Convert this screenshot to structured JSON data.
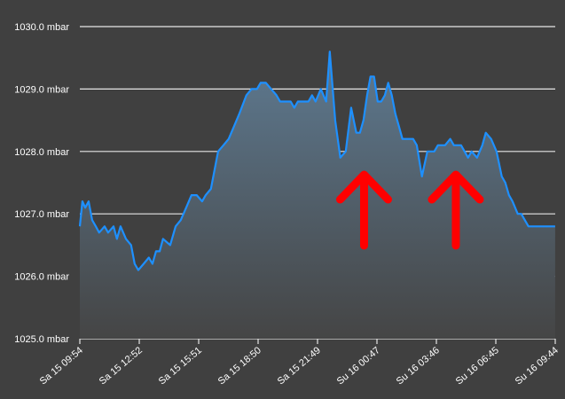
{
  "chart_data": {
    "type": "area",
    "title": "",
    "xlabel": "",
    "ylabel": "",
    "unit": "mbar",
    "ylim": [
      1025.0,
      1030.0
    ],
    "yticks": [
      "1025.0 mbar",
      "1026.0 mbar",
      "1027.0 mbar",
      "1028.0 mbar",
      "1029.0 mbar",
      "1030.0 mbar"
    ],
    "ytick_values": [
      1025,
      1026,
      1027,
      1028,
      1029,
      1030
    ],
    "xticks": [
      "Sa 15 09:54",
      "Sa 15 12:52",
      "Sa 15 15:51",
      "Sa 15 18:50",
      "Sa 15 21:49",
      "Su 16 00:47",
      "Su 16 03:46",
      "Su 16 06:45",
      "Su 16 09:44"
    ],
    "xlim_hours": [
      0,
      23.833
    ],
    "grid": true,
    "line_color": "#1e90ff",
    "fill_top_color": "#5e7a91",
    "fill_bottom_color": "#454545",
    "series": [
      {
        "x_hours": [
          0,
          0.13,
          0.27,
          0.44,
          0.62,
          0.8,
          0.97,
          1.24,
          1.42,
          1.69,
          1.86,
          2.04,
          2.31,
          2.57,
          2.75,
          2.93,
          3.2,
          3.46,
          3.64,
          3.82,
          4.0,
          4.17,
          4.53,
          4.8,
          5.06,
          5.33,
          5.6,
          5.86,
          6.13,
          6.31,
          6.57,
          6.93,
          7.2,
          7.46,
          7.73,
          7.99,
          8.35,
          8.61,
          8.88,
          9.06,
          9.33,
          9.59,
          9.86,
          10.04,
          10.31,
          10.57,
          10.75,
          10.93,
          11.19,
          11.46,
          11.64,
          11.82,
          12.08,
          12.35,
          12.53,
          12.8,
          13.06,
          13.33,
          13.6,
          13.86,
          14.04,
          14.22,
          14.4,
          14.57,
          14.75,
          14.93,
          15.11,
          15.29,
          15.46,
          15.64,
          15.82,
          16.0,
          16.17,
          16.35,
          16.53,
          16.71,
          16.89,
          17.15,
          17.42,
          17.6,
          17.77,
          17.95,
          18.13,
          18.31,
          18.57,
          18.75,
          18.93,
          19.11,
          19.29,
          19.46,
          19.64,
          19.91,
          20.18,
          20.35,
          20.62,
          20.89,
          21.15,
          21.33,
          21.51,
          21.69,
          21.95,
          22.13,
          22.31,
          22.49,
          22.66,
          22.84,
          23.02,
          23.2,
          23.37,
          23.55,
          23.83
        ],
        "values": [
          1026.8,
          1027.2,
          1027.1,
          1027.2,
          1026.9,
          1026.8,
          1026.7,
          1026.8,
          1026.7,
          1026.8,
          1026.6,
          1026.8,
          1026.6,
          1026.5,
          1026.2,
          1026.1,
          1026.2,
          1026.3,
          1026.2,
          1026.4,
          1026.4,
          1026.6,
          1026.5,
          1026.8,
          1026.9,
          1027.1,
          1027.3,
          1027.3,
          1027.2,
          1027.3,
          1027.4,
          1028.0,
          1028.1,
          1028.2,
          1028.4,
          1028.6,
          1028.9,
          1029.0,
          1029.0,
          1029.1,
          1029.1,
          1029.0,
          1028.9,
          1028.8,
          1028.8,
          1028.8,
          1028.7,
          1028.8,
          1028.8,
          1028.8,
          1028.9,
          1028.8,
          1029.0,
          1028.8,
          1029.6,
          1028.5,
          1027.9,
          1028.0,
          1028.7,
          1028.3,
          1028.3,
          1028.5,
          1028.9,
          1029.2,
          1029.2,
          1028.8,
          1028.8,
          1028.9,
          1029.1,
          1028.9,
          1028.6,
          1028.4,
          1028.2,
          1028.2,
          1028.2,
          1028.2,
          1028.1,
          1027.6,
          1028.0,
          1028.0,
          1028.0,
          1028.1,
          1028.1,
          1028.1,
          1028.2,
          1028.1,
          1028.1,
          1028.1,
          1028.0,
          1027.9,
          1028.0,
          1027.9,
          1028.1,
          1028.3,
          1028.2,
          1028.0,
          1027.6,
          1027.5,
          1027.3,
          1027.2,
          1027.0,
          1027.0,
          1026.9,
          1026.8,
          1026.8,
          1026.8,
          1026.8,
          1026.8,
          1026.8,
          1026.8,
          1026.8
        ]
      }
    ],
    "annotations": [
      {
        "kind": "arrow",
        "direction": "up",
        "x_hours": 14.25,
        "color": "#ff0000"
      },
      {
        "kind": "arrow",
        "direction": "up",
        "x_hours": 18.85,
        "color": "#ff0000"
      }
    ]
  }
}
